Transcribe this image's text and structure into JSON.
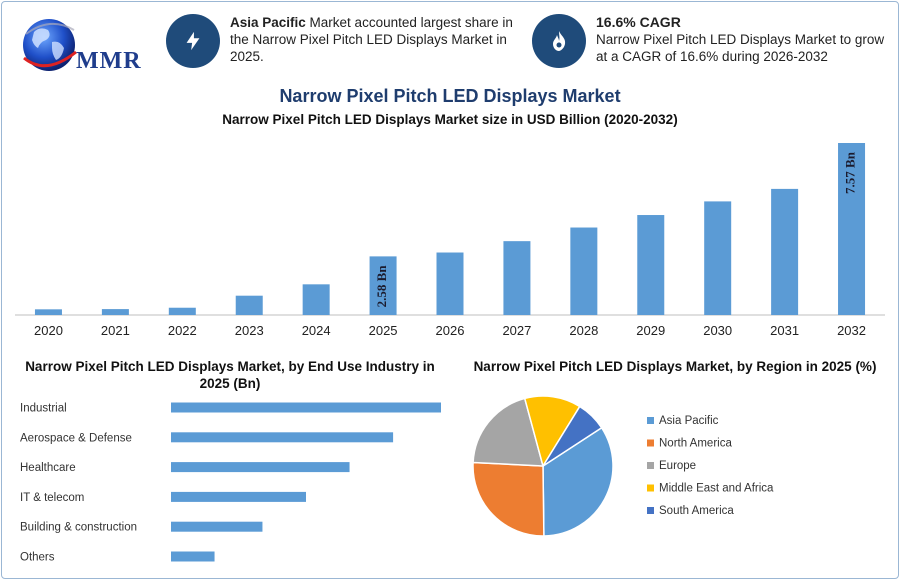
{
  "logo": {
    "text": "MMR"
  },
  "info": {
    "region_bold": "Asia Pacific",
    "region_rest": " Market accounted largest share in the Narrow Pixel Pitch LED Displays Market in 2025.",
    "cagr_title": "16.6% CAGR",
    "cagr_text": "Narrow Pixel Pitch LED Displays Market to grow at a CAGR of 16.6% during 2026-2032",
    "icon_left": "lightning-icon",
    "icon_right": "flame-icon"
  },
  "colors": {
    "bar": "#5b9bd5",
    "hbar": "#5b9bd5",
    "icon_bg": "#1f4b7a",
    "title": "#1f3d6e"
  },
  "title": "Narrow Pixel Pitch LED Displays Market",
  "subtitle": "Narrow Pixel Pitch LED Displays Market size in USD Billion (2020-2032)",
  "end_use_title": "Narrow Pixel Pitch LED Displays Market, by End Use Industry in 2025 (Bn)",
  "region_title": "Narrow Pixel Pitch LED Displays Market, by Region in 2025 (%)",
  "chart_data": [
    {
      "type": "bar",
      "categories": [
        "2020",
        "2021",
        "2022",
        "2023",
        "2024",
        "2025",
        "2026",
        "2027",
        "2028",
        "2029",
        "2030",
        "2031",
        "2032"
      ],
      "values": [
        0.25,
        0.26,
        0.32,
        0.85,
        1.35,
        2.58,
        2.75,
        3.25,
        3.85,
        4.4,
        5.0,
        5.55,
        7.57
      ],
      "data_labels": [
        {
          "index": 5,
          "text": "2.58 Bn"
        },
        {
          "index": 12,
          "text": "7.57 Bn"
        }
      ],
      "title": "Narrow Pixel Pitch LED Displays Market size in USD Billion (2020-2032)",
      "ylim": [
        0,
        7.57
      ],
      "grid": false
    },
    {
      "type": "bar",
      "orientation": "horizontal",
      "categories": [
        "Industrial",
        "Aerospace & Defense",
        "Healthcare",
        "IT & telecom",
        "Building & construction",
        "Others"
      ],
      "values": [
        0.62,
        0.51,
        0.41,
        0.31,
        0.21,
        0.1
      ],
      "title": "Narrow Pixel Pitch LED Displays Market, by End Use Industry in 2025 (Bn)",
      "grid": false
    },
    {
      "type": "pie",
      "categories": [
        "Asia Pacific",
        "North America",
        "Europe",
        "Middle East and Africa",
        "South America"
      ],
      "values": [
        34,
        26,
        20,
        13,
        7
      ],
      "colors": [
        "#5b9bd5",
        "#ed7d31",
        "#a5a5a5",
        "#ffc000",
        "#4472c4"
      ],
      "title": "Narrow Pixel Pitch LED Displays Market, by Region in 2025 (%)",
      "legend": "right"
    }
  ]
}
